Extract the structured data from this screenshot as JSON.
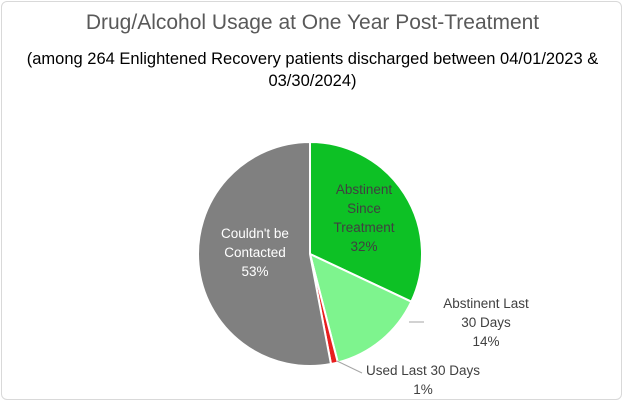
{
  "chart_data": {
    "type": "pie",
    "title": "Drug/Alcohol Usage at One Year Post-Treatment",
    "subtitle_lines": [
      "(among 264 Enlightened Recovery patients discharged between 04/01/2023 &",
      "03/30/2024)"
    ],
    "slices": [
      {
        "name": "Abstinent Since Treatment",
        "value": 32,
        "color": "#0dc125",
        "label_color": "#404040",
        "label_lines": [
          "Abstinent",
          "Since",
          "Treatment",
          "32%"
        ]
      },
      {
        "name": "Abstinent Last 30 Days",
        "value": 14,
        "color": "#7ef48e",
        "label_color": "#404040",
        "label_lines": [
          "Abstinent Last",
          "30 Days",
          "14%"
        ]
      },
      {
        "name": "Used Last 30 Days",
        "value": 1,
        "color": "#e81e1e",
        "label_color": "#404040",
        "label_lines": [
          "Used Last 30 Days",
          "1%"
        ]
      },
      {
        "name": "Couldn't be Contacted",
        "value": 53,
        "color": "#808080",
        "label_color": "#ffffff",
        "label_lines": [
          "Couldn't be",
          "Contacted",
          "53%"
        ]
      }
    ]
  }
}
